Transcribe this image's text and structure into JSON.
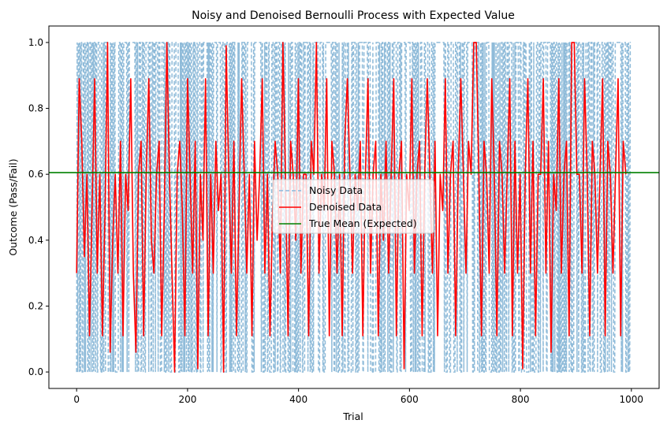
{
  "chart_data": {
    "type": "line",
    "title": "Noisy and Denoised Bernoulli Process with Expected Value",
    "xlabel": "Trial",
    "ylabel": "Outcome (Pass/Fail)",
    "xlim": [
      -50,
      1050
    ],
    "ylim": [
      -0.05,
      1.05
    ],
    "xticks": [
      0,
      200,
      400,
      600,
      800,
      1000
    ],
    "yticks": [
      0.0,
      0.2,
      0.4,
      0.6,
      0.8,
      1.0
    ],
    "xtick_labels": [
      "0",
      "200",
      "400",
      "600",
      "800",
      "1000"
    ],
    "ytick_labels": [
      "0.0",
      "0.2",
      "0.4",
      "0.6",
      "0.8",
      "1.0"
    ],
    "grid": false,
    "legend_position": "center",
    "n_trials": 1000,
    "true_mean": 0.605,
    "series": [
      {
        "name": "Noisy Data",
        "color": "#1f77b4",
        "style": "dashed",
        "values_description_values": [
          0,
          1,
          0,
          1,
          1,
          0,
          1,
          0,
          1,
          1,
          0,
          0,
          1,
          1,
          0,
          1,
          0,
          1,
          1,
          1,
          0,
          1,
          0,
          0,
          1,
          1,
          0,
          1,
          1,
          0,
          1,
          0,
          1,
          1,
          0,
          1,
          1,
          0,
          0,
          1
        ]
      },
      {
        "name": "Denoised Data",
        "color": "#ff0000",
        "style": "solid",
        "values": [
          0.3,
          0.89,
          0.7,
          0.35,
          0.6,
          0.11,
          0.5,
          0.89,
          0.3,
          0.6,
          0.11,
          0.48,
          1.0,
          0.06,
          0.4,
          0.6,
          0.3,
          0.7,
          0.11,
          0.6,
          0.49,
          0.89,
          0.3,
          0.06,
          0.6,
          0.7,
          0.11,
          0.6,
          0.89,
          0.4,
          0.3,
          0.6,
          0.7,
          0.11,
          0.49,
          1.0,
          0.6,
          0.3,
          0.0,
          0.6,
          0.7,
          0.49,
          0.11,
          0.89,
          0.6,
          0.3,
          0.7,
          0.01,
          0.6,
          0.4,
          0.89,
          0.11,
          0.6,
          0.3,
          0.7,
          0.49,
          0.6,
          0.0,
          0.99,
          0.6,
          0.3,
          0.7,
          0.11,
          0.5,
          0.89,
          0.6,
          0.3,
          0.6,
          0.11,
          0.7,
          0.4,
          0.6,
          0.89,
          0.3,
          0.6,
          0.11,
          0.49,
          0.7,
          0.6,
          0.3,
          1.0,
          0.6,
          0.11,
          0.7,
          0.6,
          0.4,
          0.89,
          0.3,
          0.6,
          0.6,
          0.11,
          0.7,
          0.6,
          1.0,
          0.3,
          0.6,
          0.49,
          0.89,
          0.11,
          0.7,
          0.6,
          0.3,
          0.6,
          0.11,
          0.7,
          0.89,
          0.6,
          0.3,
          0.6,
          0.49,
          0.7,
          0.11,
          0.6,
          0.89,
          0.3,
          0.6,
          0.7,
          0.11,
          0.6,
          0.4,
          0.7,
          0.3,
          0.6,
          0.89,
          0.11,
          0.6,
          0.7,
          0.01,
          0.6,
          0.49,
          0.89,
          0.3,
          0.6,
          0.7,
          0.11,
          0.6,
          0.89,
          0.6,
          0.3,
          0.7,
          0.11,
          0.6,
          0.49,
          0.89,
          0.3,
          0.6,
          0.7,
          0.11,
          0.6,
          0.89,
          0.6,
          0.3,
          0.7,
          0.6,
          1.0,
          1.0,
          0.6,
          0.11,
          0.7,
          0.6,
          0.3,
          0.89,
          0.6,
          0.11,
          0.7,
          0.6,
          0.3,
          0.6,
          0.89,
          0.11,
          0.7,
          0.3,
          0.6,
          0.01,
          0.6,
          0.89,
          0.3,
          0.7,
          0.11,
          0.6,
          0.6,
          0.89,
          0.3,
          0.7,
          0.06,
          0.6,
          0.49,
          0.89,
          0.3,
          0.6,
          0.7,
          0.11,
          1.0,
          1.0,
          0.6,
          0.6,
          0.3,
          0.89,
          0.6,
          0.11,
          0.7,
          0.6,
          0.3,
          0.6,
          0.89,
          0.11,
          0.7,
          0.6,
          0.3,
          0.6,
          0.89,
          0.11,
          0.7,
          0.6
        ]
      },
      {
        "name": "True Mean (Expected)",
        "color": "#008000",
        "style": "solid",
        "values": [
          0.605,
          0.605
        ]
      }
    ],
    "legend": [
      {
        "label": "Noisy Data",
        "color": "#8ab8dc",
        "style": "dashed"
      },
      {
        "label": "Denoised Data",
        "color": "#ff0000",
        "style": "solid"
      },
      {
        "label": "True Mean (Expected)",
        "color": "#008000",
        "style": "solid"
      }
    ]
  }
}
